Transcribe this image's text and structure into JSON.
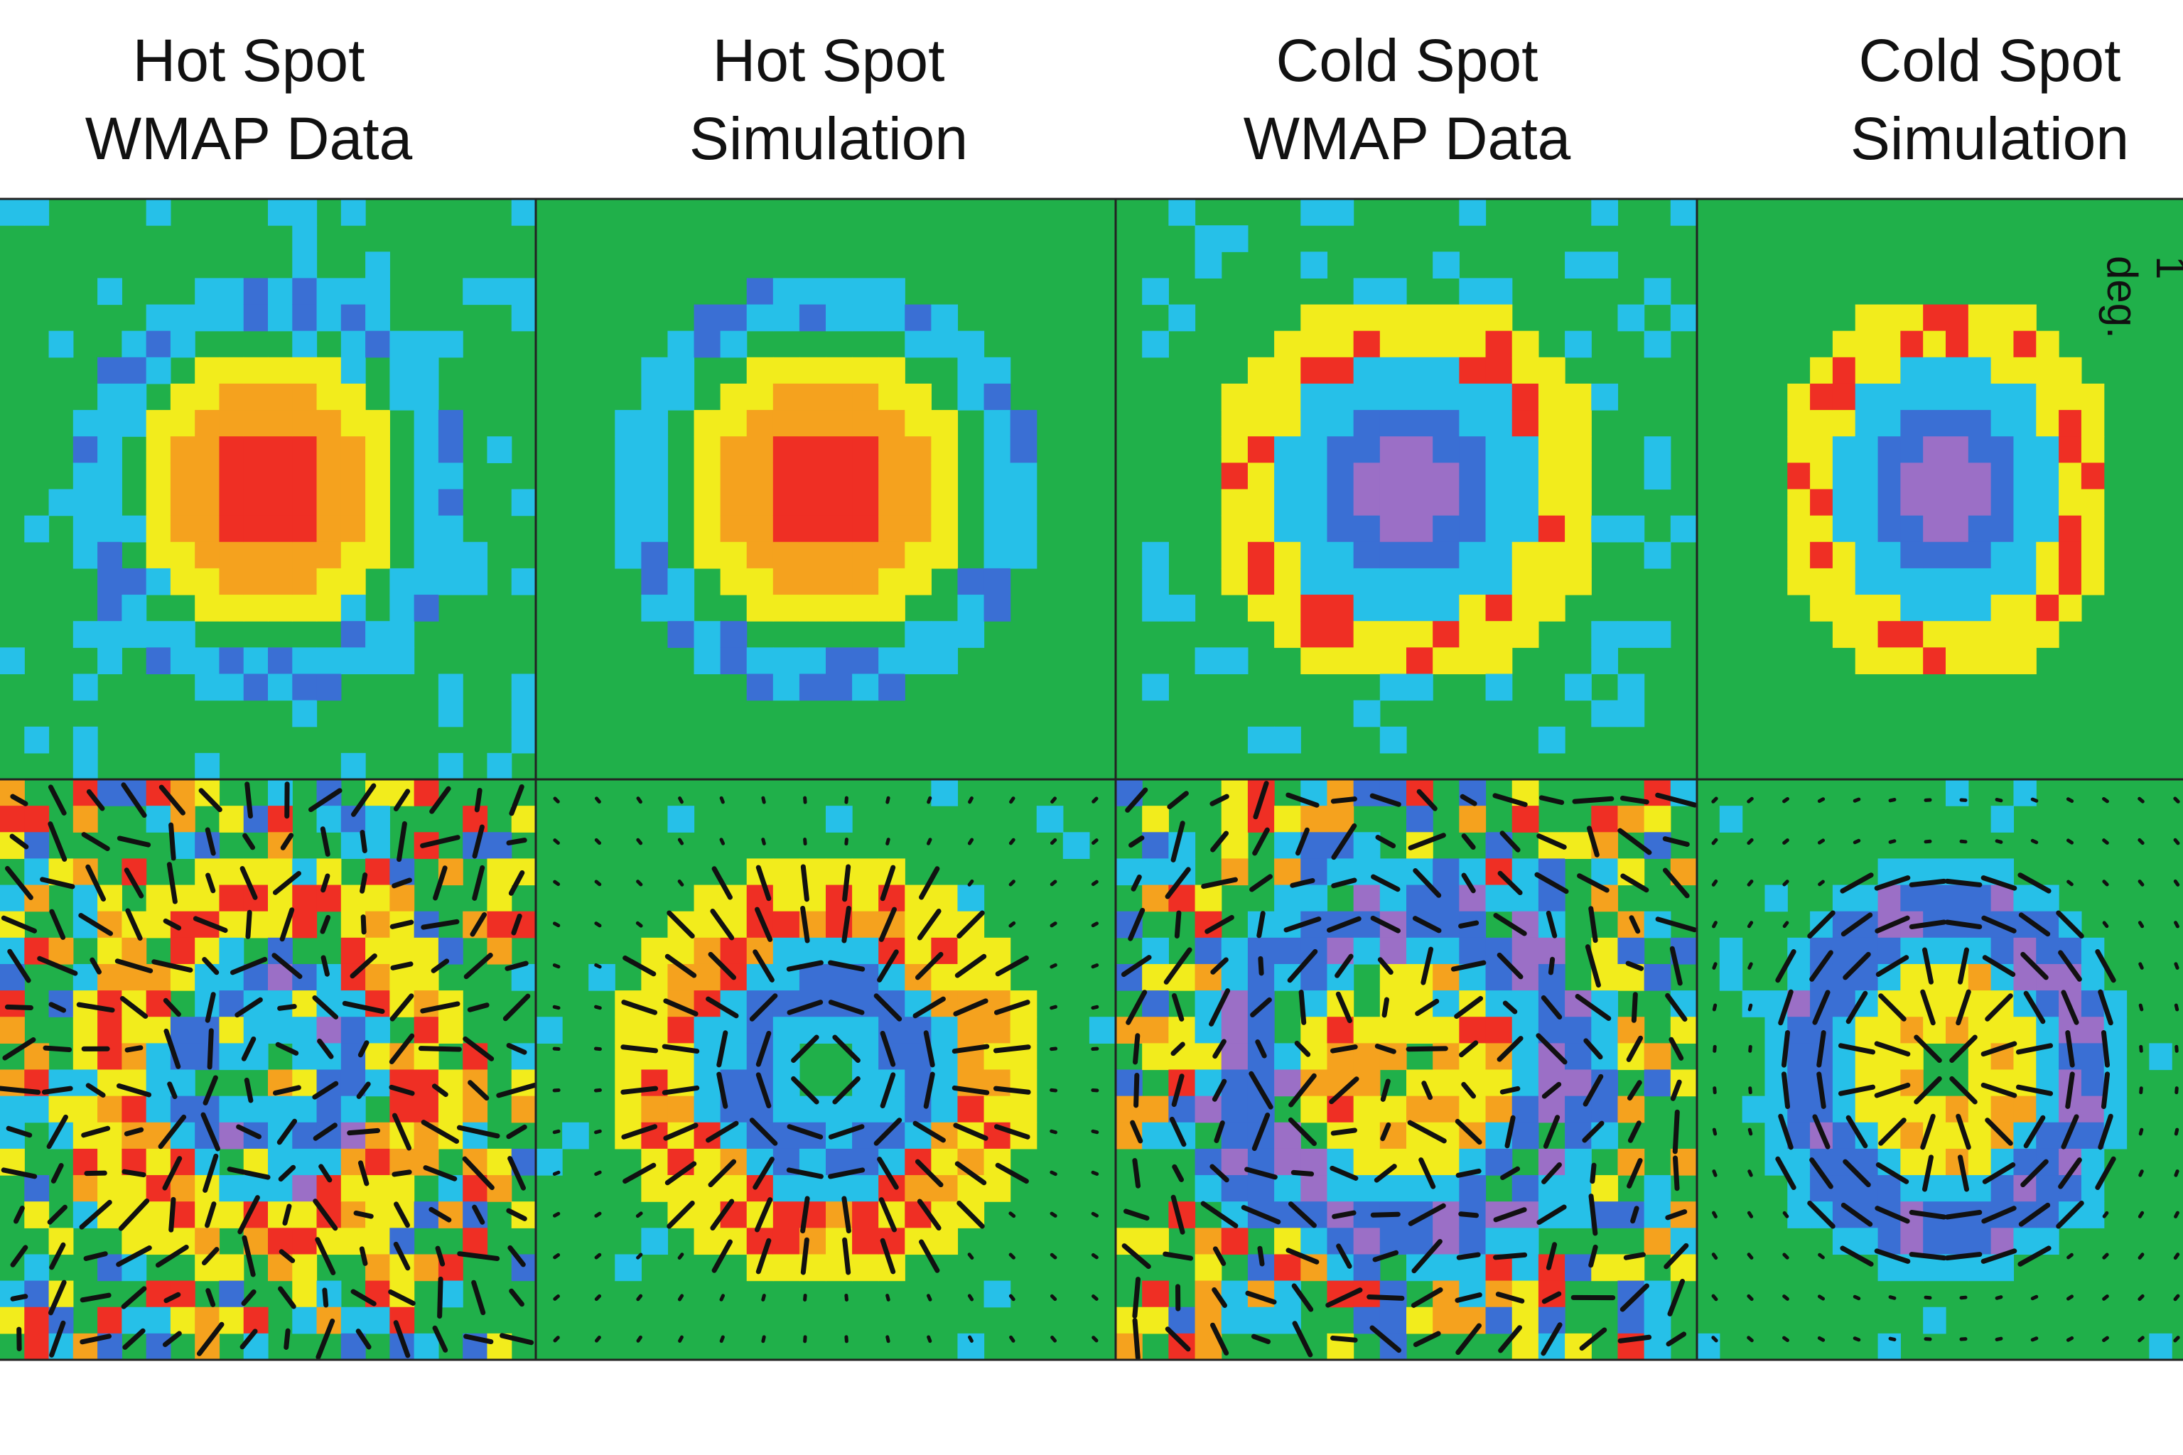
{
  "columns": [
    {
      "line1": "Hot Spot",
      "line2": "WMAP Data"
    },
    {
      "line1": "Hot Spot",
      "line2": "Simulation"
    },
    {
      "line1": "Cold Spot",
      "line2": "WMAP Data"
    },
    {
      "line1": "Cold Spot",
      "line2": "Simulation"
    }
  ],
  "side_label": "1 deg.",
  "colormap": [
    "#9b6fc6",
    "#3a6fd4",
    "#26c0e8",
    "#20b04a",
    "#f2ec1c",
    "#f5a21e",
    "#ef2f24"
  ]
}
